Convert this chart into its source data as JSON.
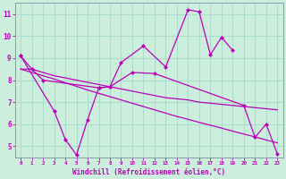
{
  "xlabel": "Windchill (Refroidissement éolien,°C)",
  "background_color": "#cceedd",
  "grid_color": "#aaddcc",
  "line_color": "#bb00bb",
  "x": [
    0,
    1,
    2,
    3,
    4,
    5,
    6,
    7,
    8,
    9,
    10,
    11,
    12,
    13,
    14,
    15,
    16,
    17,
    18,
    19,
    20,
    21,
    22,
    23
  ],
  "upper_jagged": [
    9.1,
    8.5,
    8.0,
    null,
    null,
    null,
    null,
    7.65,
    7.7,
    8.8,
    null,
    9.55,
    null,
    8.6,
    null,
    11.2,
    11.1,
    9.15,
    9.95,
    9.35,
    null,
    null,
    null,
    null
  ],
  "lower_jagged": [
    9.1,
    null,
    null,
    6.6,
    5.3,
    4.6,
    6.2,
    7.65,
    7.7,
    null,
    8.35,
    null,
    8.3,
    null,
    null,
    null,
    null,
    null,
    null,
    null,
    6.85,
    5.4,
    6.0,
    4.65
  ],
  "trend_upper": [
    8.5,
    8.5,
    8.35,
    8.2,
    8.1,
    8.0,
    7.9,
    7.8,
    7.7,
    7.6,
    7.5,
    7.4,
    7.3,
    7.2,
    7.15,
    7.1,
    7.0,
    6.95,
    6.9,
    6.85,
    6.8,
    6.75,
    6.7,
    6.65
  ],
  "trend_lower": [
    8.5,
    8.35,
    8.2,
    8.05,
    7.88,
    7.72,
    7.55,
    7.4,
    7.25,
    7.1,
    6.95,
    6.8,
    6.65,
    6.5,
    6.35,
    6.22,
    6.08,
    5.95,
    5.82,
    5.68,
    5.55,
    5.42,
    5.28,
    5.15
  ],
  "ylim": [
    4.5,
    11.5
  ],
  "xlim": [
    -0.5,
    23.5
  ],
  "yticks": [
    5,
    6,
    7,
    8,
    9,
    10,
    11
  ],
  "xticks": [
    0,
    1,
    2,
    3,
    4,
    5,
    6,
    7,
    8,
    9,
    10,
    11,
    12,
    13,
    14,
    15,
    16,
    17,
    18,
    19,
    20,
    21,
    22,
    23
  ]
}
